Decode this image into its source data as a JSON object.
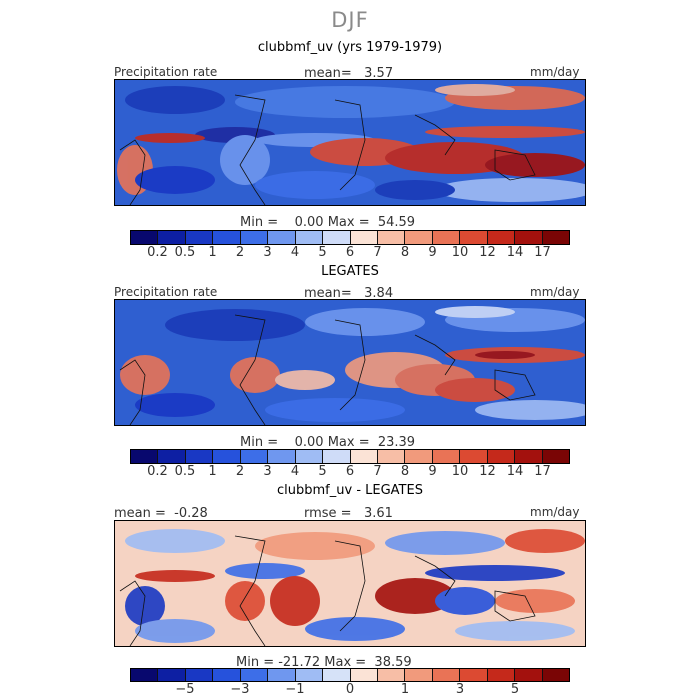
{
  "season": "DJF",
  "top_title": "clubbmf_uv (yrs 1979-1979)",
  "panel1": {
    "left_label": "Precipitation rate",
    "mean_text": "mean=   3.57",
    "units": "mm/day",
    "minmax": "Min =    0.00 Max =  54.59"
  },
  "panel2_title": "LEGATES",
  "panel2": {
    "left_label": "Precipitation rate",
    "mean_text": "mean=   3.84",
    "units": "mm/day",
    "minmax": "Min =    0.00 Max =  23.39"
  },
  "panel3_title": "clubbmf_uv - LEGATES",
  "panel3": {
    "mean_text": "mean =  -0.28",
    "rmse_text": "rmse =   3.61",
    "units": "mm/day",
    "minmax": "Min = -21.72 Max =  38.59"
  },
  "scale1": {
    "colors": [
      "#08086e",
      "#0d1fa3",
      "#1938c4",
      "#2652dc",
      "#3d6ee8",
      "#6f97ef",
      "#9fbcf4",
      "#cfdcf8",
      "#fbe3d6",
      "#f7bea6",
      "#f19a7c",
      "#e97356",
      "#dc4a32",
      "#c5291b",
      "#a3110d",
      "#7a0505"
    ],
    "ticks": [
      "0.2",
      "0.5",
      "1",
      "2",
      "3",
      "4",
      "5",
      "6",
      "7",
      "8",
      "9",
      "10",
      "12",
      "14",
      "17"
    ]
  },
  "scale3": {
    "colors": [
      "#08086e",
      "#0d1fa3",
      "#1938c4",
      "#2652dc",
      "#3d6ee8",
      "#6f97ef",
      "#9fbcf4",
      "#d6e2f8",
      "#fbe3d6",
      "#f7bea6",
      "#f19a7c",
      "#e97356",
      "#dc4a32",
      "#c5291b",
      "#a3110d",
      "#7a0505"
    ],
    "ticks": [
      "−5",
      "−3",
      "−1",
      "0",
      "1",
      "3",
      "5"
    ],
    "tick_index": [
      2,
      4,
      6,
      8,
      10,
      12,
      14
    ]
  }
}
